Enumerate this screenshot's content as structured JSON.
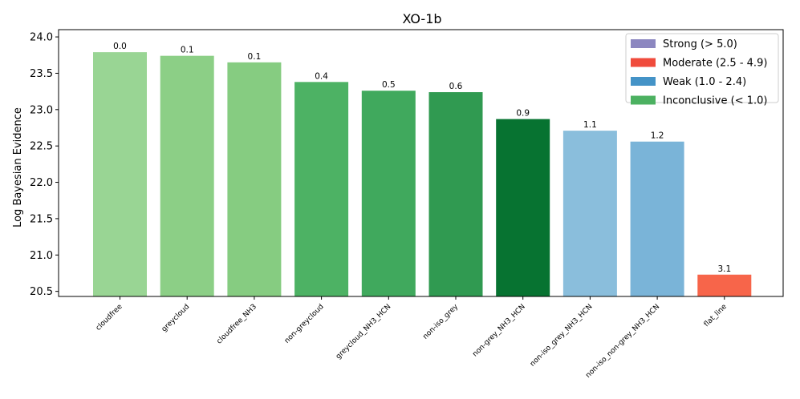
{
  "chart_data": {
    "type": "bar",
    "title": "XO-1b",
    "xlabel": "",
    "ylabel": "Log Bayesian Evidence",
    "ylim": [
      20.43,
      24.1
    ],
    "yticks": [
      20.5,
      21.0,
      21.5,
      22.0,
      22.5,
      23.0,
      23.5,
      24.0
    ],
    "ytick_labels": [
      "20.5",
      "21.0",
      "21.5",
      "22.0",
      "22.5",
      "23.0",
      "23.5",
      "24.0"
    ],
    "grid": false,
    "legend_position": "top-right",
    "categories": [
      "cloudfree",
      "greycloud",
      "cloudfree_NH3",
      "non-greycloud",
      "greycloud_NH3_HCN",
      "non-iso_grey",
      "non-grey_NH3_HCN",
      "non-iso_grey_NH3_HCN",
      "non-iso_non-grey_NH3_HCN",
      "flat_line"
    ],
    "values": [
      23.79,
      23.74,
      23.65,
      23.38,
      23.26,
      23.24,
      22.87,
      22.71,
      22.56,
      20.73
    ],
    "data_labels": [
      "0.0",
      "0.1",
      "0.1",
      "0.4",
      "0.5",
      "0.6",
      "0.9",
      "1.1",
      "1.2",
      "3.1"
    ],
    "colors": [
      "#99d594",
      "#8ccf86",
      "#86cc81",
      "#4db264",
      "#40a95d",
      "#309a51",
      "#077331",
      "#8abedc",
      "#7ab4d8",
      "#f7654a"
    ],
    "legend": [
      {
        "label": "Strong (> 5.0)",
        "color": "#8c87c0"
      },
      {
        "label": "Moderate (2.5 - 4.9)",
        "color": "#f04b3c"
      },
      {
        "label": "Weak (1.0 - 2.4)",
        "color": "#4493c7"
      },
      {
        "label": "Inconclusive (< 1.0)",
        "color": "#4cb161"
      }
    ]
  }
}
